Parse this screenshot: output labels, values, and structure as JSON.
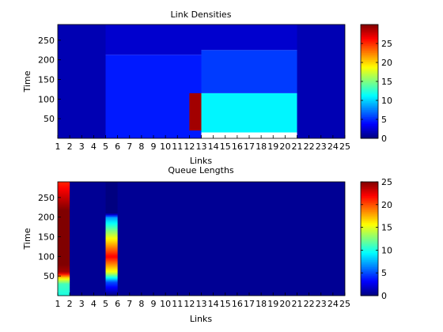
{
  "chart_data": [
    {
      "type": "heatmap",
      "title": "Link Densities",
      "xlabel": "Links",
      "ylabel": "Time",
      "x_ticks": [
        "1",
        "2",
        "3",
        "4",
        "5",
        "6",
        "7",
        "8",
        "9",
        "10",
        "11",
        "12",
        "13",
        "14",
        "15",
        "16",
        "17",
        "18",
        "19",
        "20",
        "21",
        "22",
        "23",
        "24",
        "25"
      ],
      "y_ticks": [
        50,
        100,
        150,
        200,
        250
      ],
      "xlim": [
        1,
        25
      ],
      "ylim": [
        0,
        290
      ],
      "y_direction": "up",
      "colormap": "jet",
      "clim": [
        0,
        30
      ],
      "colorbar_ticks": [
        0,
        5,
        10,
        15,
        20,
        25
      ],
      "blocks": [
        {
          "x_from": 1,
          "x_to": 5,
          "t_from": 0,
          "t_to": 290,
          "value": 1.5
        },
        {
          "x_from": 5,
          "x_to": 13,
          "t_from": 0,
          "t_to": 213,
          "value": 4.5
        },
        {
          "x_from": 5,
          "x_to": 13,
          "t_from": 213,
          "t_to": 290,
          "value": 2.3
        },
        {
          "x_from": 12,
          "x_to": 13,
          "t_from": 20,
          "t_to": 115,
          "value": 29
        },
        {
          "x_from": 13,
          "x_to": 21,
          "t_from": 15,
          "t_to": 115,
          "value": 11
        },
        {
          "x_from": 13,
          "x_to": 21,
          "t_from": 115,
          "t_to": 225,
          "value": 5.5
        },
        {
          "x_from": 13,
          "x_to": 21,
          "t_from": 225,
          "t_to": 290,
          "value": 2.3
        },
        {
          "x_from": 21,
          "x_to": 25,
          "t_from": 0,
          "t_to": 290,
          "value": 1.5
        }
      ]
    },
    {
      "type": "heatmap",
      "title": "Queue Lengths",
      "xlabel": "Links",
      "ylabel": "Time",
      "x_ticks": [
        "1",
        "2",
        "3",
        "4",
        "5",
        "6",
        "7",
        "8",
        "9",
        "10",
        "11",
        "12",
        "13",
        "14",
        "15",
        "16",
        "17",
        "18",
        "19",
        "20",
        "21",
        "22",
        "23",
        "24",
        "25"
      ],
      "y_ticks": [
        50,
        100,
        150,
        200,
        250
      ],
      "xlim": [
        1,
        25
      ],
      "ylim": [
        0,
        290
      ],
      "y_direction": "up",
      "colormap": "jet",
      "clim": [
        0,
        25
      ],
      "colorbar_ticks": [
        0,
        5,
        10,
        15,
        20,
        25
      ],
      "columns": [
        {
          "link": 1,
          "profile": [
            {
              "t": 0,
              "v": 10
            },
            {
              "t": 30,
              "v": 11
            },
            {
              "t": 45,
              "v": 16
            },
            {
              "t": 60,
              "v": 24
            },
            {
              "t": 100,
              "v": 26
            },
            {
              "t": 200,
              "v": 26
            },
            {
              "t": 290,
              "v": 21
            }
          ]
        },
        {
          "link": 5,
          "profile": [
            {
              "t": 0,
              "v": 0
            },
            {
              "t": 35,
              "v": 5
            },
            {
              "t": 60,
              "v": 15
            },
            {
              "t": 100,
              "v": 22
            },
            {
              "t": 150,
              "v": 15
            },
            {
              "t": 200,
              "v": 7
            },
            {
              "t": 210,
              "v": 0
            }
          ]
        }
      ],
      "background_value": 0.5
    }
  ]
}
